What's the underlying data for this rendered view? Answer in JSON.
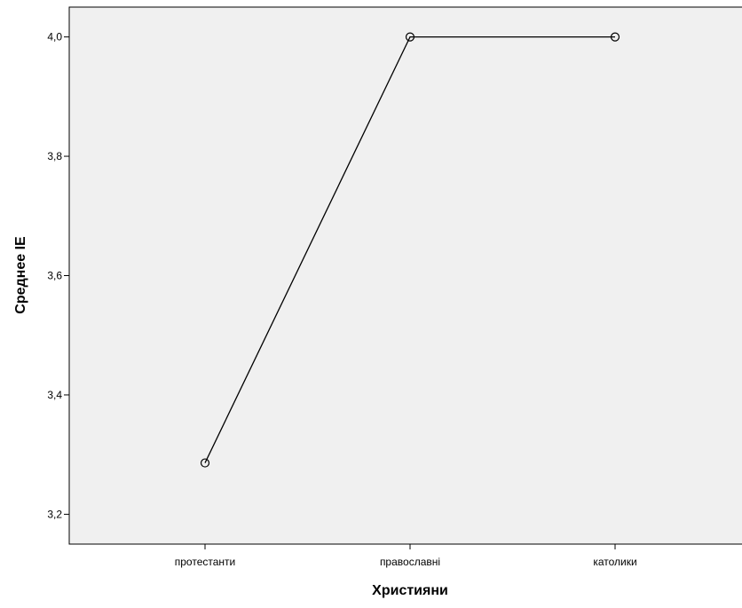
{
  "chart_data": {
    "type": "line",
    "xlabel": "Християни",
    "ylabel": "Среднее IE",
    "categories": [
      "протестанти",
      "православні",
      "католики"
    ],
    "series": [
      {
        "values": [
          3.286,
          4.0,
          4.0
        ]
      }
    ],
    "ylim": [
      3.15,
      4.05
    ],
    "yticks": [
      3.2,
      3.4,
      3.6,
      3.8,
      4.0
    ],
    "ytick_labels": [
      "3,2",
      "3,4",
      "3,6",
      "3,8",
      "4,0"
    ],
    "markers": "open-circle",
    "grid": false,
    "colors": {
      "plot_background": "#f0f0f0",
      "line": "#000000",
      "frame": "#000000"
    }
  }
}
